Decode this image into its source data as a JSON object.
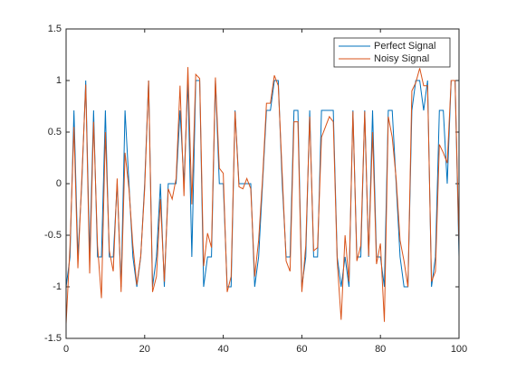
{
  "chart_data": {
    "type": "line",
    "x": [
      0,
      1,
      2,
      3,
      4,
      5,
      6,
      7,
      8,
      9,
      10,
      11,
      12,
      13,
      14,
      15,
      16,
      17,
      18,
      19,
      20,
      21,
      22,
      23,
      24,
      25,
      26,
      27,
      28,
      29,
      30,
      31,
      32,
      33,
      34,
      35,
      36,
      37,
      38,
      39,
      40,
      41,
      42,
      43,
      44,
      45,
      46,
      47,
      48,
      49,
      50,
      51,
      52,
      53,
      54,
      55,
      56,
      57,
      58,
      59,
      60,
      61,
      62,
      63,
      64,
      65,
      66,
      67,
      68,
      69,
      70,
      71,
      72,
      73,
      74,
      75,
      76,
      77,
      78,
      79,
      80,
      81,
      82,
      83,
      84,
      85,
      86,
      87,
      88,
      89,
      90,
      91,
      92,
      93,
      94,
      95,
      96,
      97,
      98,
      99,
      100
    ],
    "series": [
      {
        "name": "Perfect Signal",
        "color": "#0072BD",
        "values": [
          -1,
          -0.71,
          0.71,
          -0.71,
          0,
          1,
          -0.71,
          0.71,
          -0.71,
          -0.71,
          0.71,
          -0.71,
          -0.71,
          0,
          -1,
          0.71,
          0,
          -0.71,
          -1,
          -0.71,
          0,
          1,
          -1,
          -0.71,
          0,
          -1,
          0,
          0,
          0,
          0.71,
          0,
          1,
          -0.71,
          1,
          1,
          -1,
          -0.71,
          -0.71,
          1,
          0,
          0,
          -1,
          -1,
          0.71,
          0,
          0,
          0,
          0,
          -1,
          -0.71,
          0,
          0.71,
          0.71,
          1,
          1,
          0,
          -0.71,
          -0.71,
          0.71,
          0.71,
          -1,
          -0.71,
          0.71,
          -0.71,
          -0.71,
          0.71,
          0.71,
          0.71,
          0.71,
          -0.71,
          -1,
          -0.71,
          -1,
          0.71,
          -0.71,
          -0.71,
          0.71,
          -0.71,
          0.71,
          -0.71,
          -0.71,
          -1,
          0.71,
          0.71,
          0,
          -0.71,
          -1,
          -1,
          0.71,
          1,
          1,
          0.71,
          1,
          -1,
          -0.71,
          0.71,
          0.71,
          0,
          1,
          1,
          -0.71
        ]
      },
      {
        "name": "Noisy Signal",
        "color": "#D95319",
        "values": [
          -1.36,
          -0.6,
          0.55,
          -0.82,
          0.05,
          0.96,
          -0.87,
          0.6,
          -0.6,
          -1.11,
          0.5,
          -0.65,
          -0.85,
          0.05,
          -1.05,
          0.3,
          -0.05,
          -0.6,
          -0.98,
          -0.7,
          -0.05,
          1.0,
          -1.05,
          -0.9,
          -0.15,
          -0.95,
          -0.05,
          -0.15,
          0.05,
          0.95,
          -0.12,
          1.13,
          -0.2,
          1.06,
          1.02,
          -0.8,
          -0.48,
          -0.62,
          1.03,
          0.15,
          0.1,
          -1.05,
          -0.9,
          0.7,
          -0.03,
          -0.05,
          0.05,
          -0.05,
          -0.9,
          -0.55,
          0.05,
          0.78,
          0.78,
          1.05,
          0.95,
          0.1,
          -0.75,
          -0.85,
          0.6,
          0.6,
          -1.05,
          -0.6,
          0.65,
          -0.65,
          -0.62,
          0.45,
          0.55,
          0.65,
          0.6,
          -0.75,
          -1.32,
          -0.5,
          -0.95,
          0.7,
          -0.75,
          -0.6,
          0.7,
          -0.7,
          0.5,
          -0.78,
          -0.58,
          -1.34,
          0.65,
          0.45,
          0.05,
          -0.55,
          -0.75,
          -1.0,
          0.9,
          0.98,
          1.12,
          0.95,
          0.95,
          -0.95,
          -0.85,
          0.38,
          0.3,
          0.2,
          1.0,
          1.0,
          -0.6
        ]
      }
    ],
    "xlim": [
      0,
      100
    ],
    "xticks": [
      0,
      20,
      40,
      60,
      80,
      100
    ],
    "ylim": [
      -1.5,
      1.5
    ],
    "yticks": [
      -1.5,
      -1,
      -0.5,
      0,
      0.5,
      1,
      1.5
    ],
    "legend": "northeast"
  }
}
